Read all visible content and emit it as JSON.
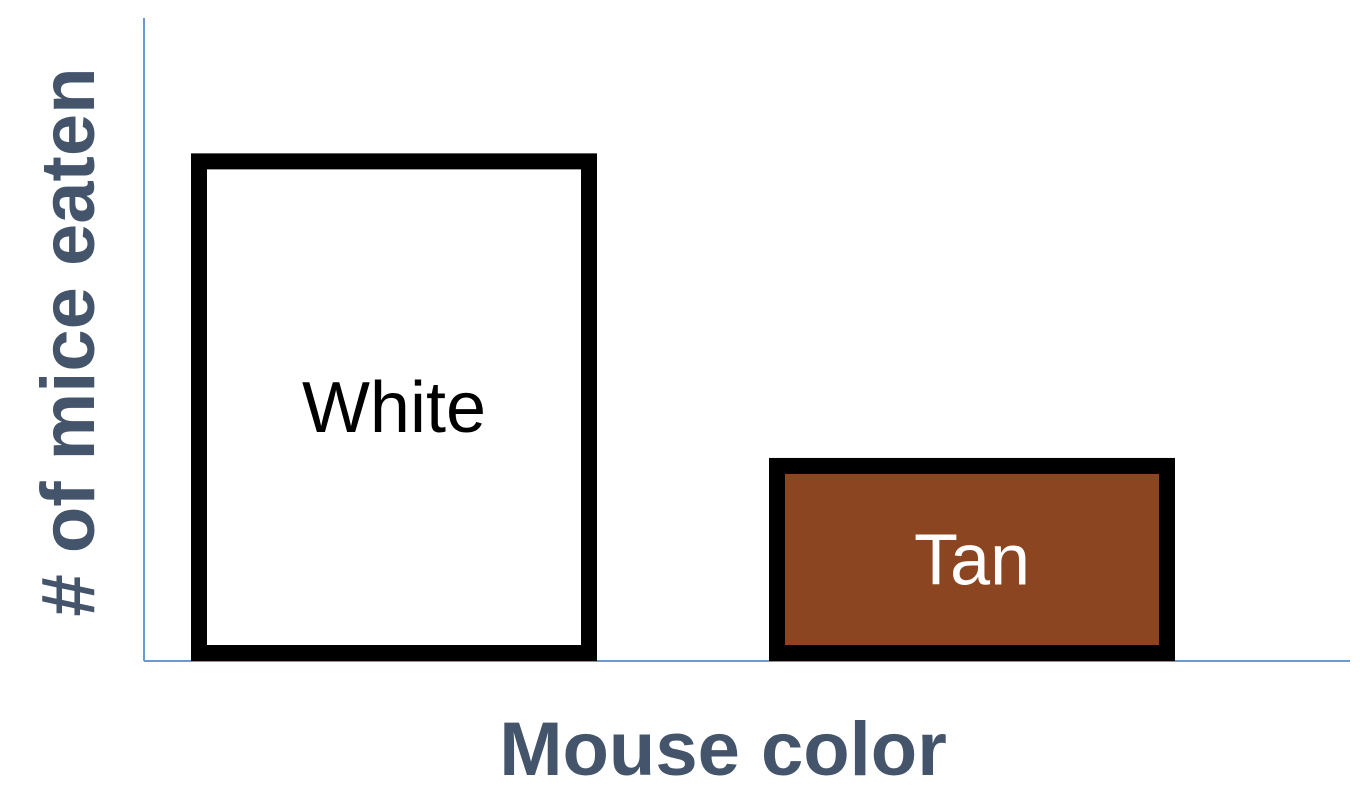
{
  "chart_data": {
    "type": "bar",
    "title": "",
    "xlabel": "Mouse color",
    "ylabel": "# of mice eaten",
    "categories": [
      "White",
      "Tan"
    ],
    "values": [
      3,
      1.2
    ],
    "ylim": [
      0,
      3.8
    ],
    "grid": false,
    "legend": "none",
    "bar_fills": [
      "#ffffff",
      "#8b4520"
    ],
    "label_colors": [
      "#000000",
      "#ffffff"
    ],
    "bar_outline": "#000000",
    "axis_color": "#6a9ad4",
    "axis_title_color": "#44546a"
  }
}
